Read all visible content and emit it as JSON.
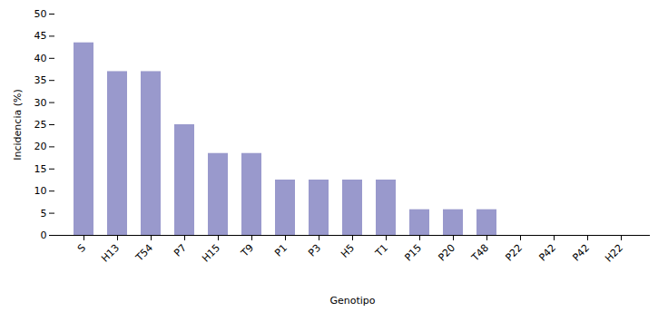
{
  "chart_data": {
    "type": "bar",
    "categories": [
      "S",
      "H13",
      "T54",
      "P7",
      "H15",
      "T9",
      "P1",
      "P3",
      "H5",
      "T1",
      "P15",
      "P20",
      "T48",
      "P22",
      "P42",
      "P42",
      "H22"
    ],
    "values": [
      43.5,
      37.0,
      37.0,
      25.0,
      18.5,
      18.5,
      12.5,
      12.5,
      12.5,
      12.5,
      5.8,
      5.8,
      5.8,
      0,
      0,
      0,
      0
    ],
    "color": "#9999cc",
    "xlabel": "Genotipo",
    "ylabel": "Incidencia (%)",
    "ylim": [
      0,
      50
    ],
    "yticks": [
      0,
      5,
      10,
      15,
      20,
      25,
      30,
      35,
      40,
      45,
      50
    ],
    "grid": false
  }
}
